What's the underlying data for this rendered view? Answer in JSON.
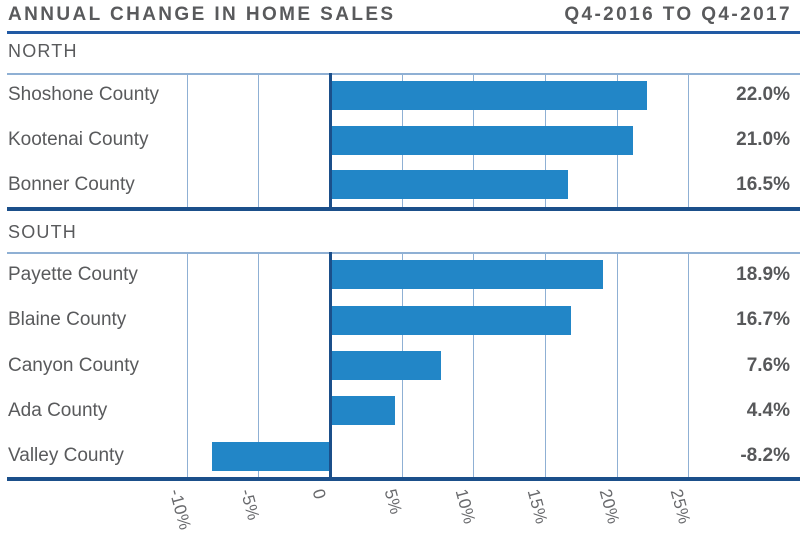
{
  "header": {
    "title": "ANNUAL CHANGE IN HOME SALES",
    "period": "Q4-2016 TO Q4-2017"
  },
  "chart_data": {
    "type": "bar",
    "orientation": "horizontal",
    "title": "ANNUAL CHANGE IN HOME SALES",
    "subtitle": "Q4-2016 TO Q4-2017",
    "unit": "%",
    "x_ticks": [
      "-10%",
      "-5%",
      "0",
      "5%",
      "10%",
      "15%",
      "20%",
      "25%"
    ],
    "x_tick_values": [
      -10,
      -5,
      0,
      5,
      10,
      15,
      20,
      25
    ],
    "xlim": [
      -12.5,
      27.5
    ],
    "grid": "on",
    "sections": [
      {
        "name": "NORTH",
        "rows": [
          {
            "label": "Shoshone County",
            "value": 22.0,
            "value_label": "22.0%"
          },
          {
            "label": "Kootenai County",
            "value": 21.0,
            "value_label": "21.0%"
          },
          {
            "label": "Bonner County",
            "value": 16.5,
            "value_label": "16.5%"
          }
        ]
      },
      {
        "name": "SOUTH",
        "rows": [
          {
            "label": "Payette County",
            "value": 18.9,
            "value_label": "18.9%"
          },
          {
            "label": "Blaine County",
            "value": 16.7,
            "value_label": "16.7%"
          },
          {
            "label": "Canyon County",
            "value": 7.6,
            "value_label": "7.6%"
          },
          {
            "label": "Ada County",
            "value": 4.4,
            "value_label": "4.4%"
          },
          {
            "label": "Valley County",
            "value": -8.2,
            "value_label": "-8.2%"
          }
        ]
      }
    ],
    "colors": {
      "bar": "#2286c7",
      "gridline": "#8fb0d4",
      "axis_rule": "#1b4f8a",
      "title_rule": "#215aa4",
      "text": "#595a5c",
      "tick_text": "#68696c"
    }
  }
}
